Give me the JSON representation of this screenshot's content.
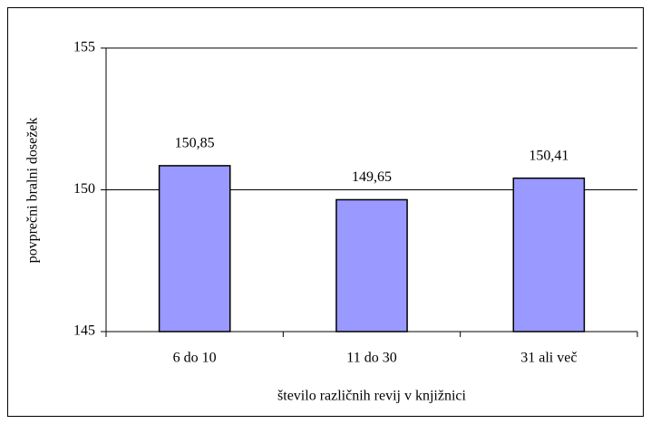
{
  "chart_data": {
    "type": "bar",
    "categories": [
      "6 do 10",
      "11 do 30",
      "31 ali več"
    ],
    "values": [
      150.85,
      149.65,
      150.41
    ],
    "value_labels": [
      "150,85",
      "149,65",
      "150,41"
    ],
    "color": "#9999ff",
    "xlabel": "število različnih revij v knjižnici",
    "ylabel": "povprečni bralni dosežek",
    "ylim": [
      145,
      155
    ],
    "yticks": [
      145,
      150,
      155
    ],
    "grid": true
  }
}
